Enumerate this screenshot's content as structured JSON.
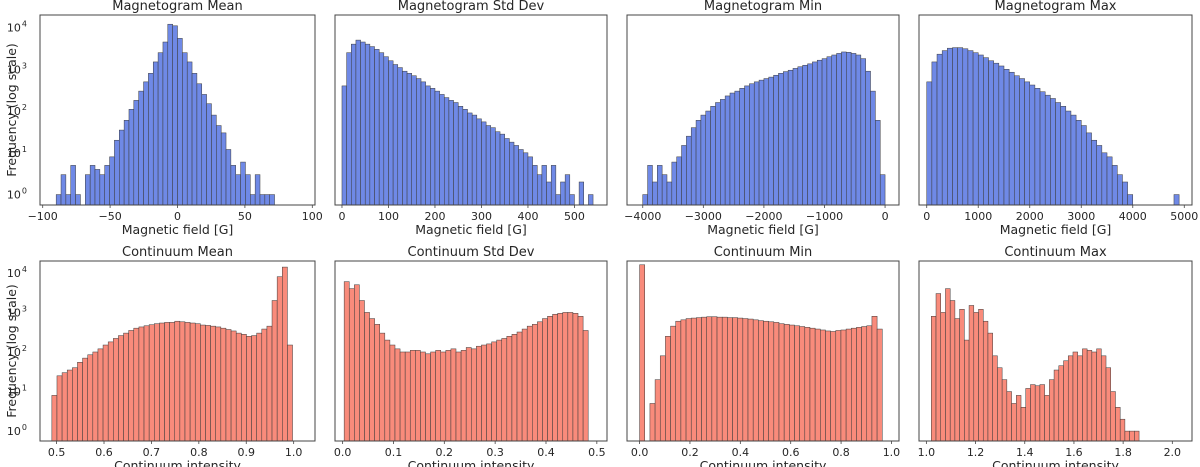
{
  "chart_data": [
    {
      "type": "bar",
      "title": "Magnetogram Mean",
      "xlabel": "Magnetic field [G]",
      "ylabel": "Frequency (log scale)",
      "color": "#6f89e6",
      "xlim": [
        -102,
        102
      ],
      "ylim_log10": [
        -0.25,
        4.3
      ],
      "bin_start": -90,
      "bin_width": 3.6,
      "counts": [
        1,
        3,
        1,
        5,
        1,
        0,
        3,
        5,
        4,
        3,
        5,
        8,
        20,
        35,
        60,
        110,
        180,
        300,
        500,
        800,
        1500,
        2500,
        4500,
        12000,
        11000,
        5500,
        2500,
        1500,
        800,
        450,
        250,
        150,
        80,
        45,
        30,
        12,
        5,
        3,
        6,
        3,
        1,
        3,
        1,
        1,
        1
      ],
      "xticks": [
        "−100",
        "−50",
        "0",
        "50",
        "100"
      ],
      "xtick_values": [
        -100,
        -50,
        0,
        50,
        100
      ],
      "yticks": [
        0,
        1,
        2,
        3,
        4
      ],
      "show_yticks": true
    },
    {
      "type": "bar",
      "title": "Magnetogram Std Dev",
      "xlabel": "Magnetic field [G]",
      "ylabel": "",
      "color": "#6f89e6",
      "xlim": [
        -15,
        570
      ],
      "ylim_log10": [
        -0.25,
        4.3
      ],
      "bin_start": 0,
      "bin_width": 10,
      "counts": [
        400,
        2500,
        4000,
        5000,
        4500,
        4000,
        3500,
        3000,
        2500,
        2000,
        1600,
        1300,
        1100,
        900,
        800,
        700,
        600,
        500,
        400,
        350,
        300,
        250,
        210,
        180,
        160,
        130,
        110,
        90,
        80,
        65,
        55,
        45,
        40,
        32,
        28,
        22,
        18,
        15,
        12,
        10,
        8,
        5,
        3,
        5,
        2,
        5,
        1,
        2,
        3,
        1,
        0,
        2,
        0,
        1,
        0
      ],
      "xticks": [
        "0",
        "100",
        "200",
        "300",
        "400",
        "500"
      ],
      "xtick_values": [
        0,
        100,
        200,
        300,
        400,
        500
      ],
      "yticks": [
        0,
        1,
        2,
        3,
        4
      ],
      "show_yticks": false
    },
    {
      "type": "bar",
      "title": "Magnetogram Min",
      "xlabel": "Magnetic field [G]",
      "ylabel": "",
      "color": "#6f89e6",
      "xlim": [
        -4260,
        230
      ],
      "ylim_log10": [
        -0.25,
        4.3
      ],
      "bin_start": -4000,
      "bin_width": 80,
      "counts": [
        1,
        5,
        2,
        5,
        3,
        2,
        6,
        8,
        15,
        25,
        40,
        60,
        80,
        100,
        130,
        160,
        190,
        230,
        270,
        300,
        350,
        400,
        450,
        500,
        550,
        600,
        650,
        720,
        800,
        880,
        950,
        1050,
        1150,
        1250,
        1350,
        1500,
        1650,
        1800,
        2000,
        2200,
        2400,
        2600,
        2550,
        2400,
        2200,
        1800,
        900,
        300,
        60,
        3
      ],
      "xticks": [
        "−4000",
        "−3000",
        "−2000",
        "−1000",
        "0"
      ],
      "xtick_values": [
        -4000,
        -3000,
        -2000,
        -1000,
        0
      ],
      "yticks": [
        0,
        1,
        2,
        3,
        4
      ],
      "show_yticks": false
    },
    {
      "type": "bar",
      "title": "Magnetogram Max",
      "xlabel": "Magnetic field [G]",
      "ylabel": "",
      "color": "#6f89e6",
      "xlim": [
        -150,
        5150
      ],
      "ylim_log10": [
        -0.25,
        4.3
      ],
      "bin_start": 0,
      "bin_width": 100,
      "counts": [
        500,
        1500,
        2300,
        2800,
        3200,
        3300,
        3300,
        3100,
        2800,
        2500,
        2200,
        1900,
        1600,
        1400,
        1200,
        1000,
        850,
        700,
        600,
        500,
        420,
        350,
        290,
        240,
        200,
        160,
        130,
        100,
        80,
        60,
        45,
        30,
        20,
        15,
        10,
        8,
        5,
        3,
        2,
        1,
        0,
        0,
        0,
        0,
        0,
        0,
        0,
        0,
        1
      ],
      "xticks": [
        "0",
        "1000",
        "2000",
        "3000",
        "4000",
        "5000"
      ],
      "xtick_values": [
        0,
        1000,
        2000,
        3000,
        4000,
        5000
      ],
      "yticks": [
        0,
        1,
        2,
        3,
        4
      ],
      "show_yticks": false
    },
    {
      "type": "bar",
      "title": "Continuum Mean",
      "xlabel": "Continuum intensity",
      "ylabel": "Frequency (log scale)",
      "color": "#f98b7b",
      "xlim": [
        0.465,
        1.045
      ],
      "ylim_log10": [
        -0.25,
        4.3
      ],
      "bin_start": 0.49,
      "bin_width": 0.0108,
      "counts": [
        8,
        25,
        30,
        35,
        40,
        55,
        70,
        85,
        100,
        120,
        150,
        180,
        220,
        260,
        300,
        350,
        400,
        430,
        460,
        490,
        520,
        540,
        560,
        560,
        600,
        580,
        560,
        540,
        520,
        480,
        470,
        450,
        430,
        400,
        370,
        340,
        300,
        280,
        250,
        260,
        300,
        380,
        450,
        2000,
        8000,
        14000,
        150
      ],
      "xticks": [
        "0.5",
        "0.6",
        "0.7",
        "0.8",
        "0.9",
        "1.0"
      ],
      "xtick_values": [
        0.5,
        0.6,
        0.7,
        0.8,
        0.9,
        1.0
      ],
      "yticks": [
        0,
        1,
        2,
        3,
        4
      ],
      "show_yticks": true
    },
    {
      "type": "bar",
      "title": "Continuum Std Dev",
      "xlabel": "Continuum intensity",
      "ylabel": "",
      "color": "#f98b7b",
      "xlim": [
        -0.015,
        0.52
      ],
      "ylim_log10": [
        -0.25,
        4.3
      ],
      "bin_start": 0.003,
      "bin_width": 0.01,
      "counts": [
        6000,
        4000,
        5000,
        2000,
        1000,
        700,
        500,
        300,
        200,
        150,
        120,
        100,
        100,
        110,
        110,
        100,
        90,
        100,
        110,
        100,
        110,
        120,
        100,
        110,
        130,
        120,
        140,
        150,
        160,
        180,
        200,
        220,
        250,
        280,
        320,
        380,
        450,
        500,
        580,
        700,
        800,
        900,
        950,
        1000,
        1000,
        950,
        800,
        350
      ],
      "xticks": [
        "0.0",
        "0.1",
        "0.2",
        "0.3",
        "0.4",
        "0.5"
      ],
      "xtick_values": [
        0.0,
        0.1,
        0.2,
        0.3,
        0.4,
        0.5
      ],
      "yticks": [
        0,
        1,
        2,
        3,
        4
      ],
      "show_yticks": false
    },
    {
      "type": "bar",
      "title": "Continuum Min",
      "xlabel": "Continuum intensity",
      "ylabel": "",
      "color": "#f98b7b",
      "xlim": [
        -0.05,
        1.03
      ],
      "ylim_log10": [
        -0.25,
        4.3
      ],
      "bin_start": 0.0,
      "bin_width": 0.0205,
      "counts": [
        16000,
        0,
        5,
        20,
        80,
        250,
        450,
        600,
        650,
        700,
        720,
        740,
        760,
        780,
        780,
        760,
        760,
        740,
        740,
        720,
        700,
        680,
        650,
        620,
        600,
        580,
        560,
        520,
        500,
        480,
        460,
        440,
        420,
        400,
        380,
        360,
        340,
        330,
        350,
        360,
        380,
        400,
        420,
        440,
        460,
        800,
        380
      ],
      "xticks": [
        "0.0",
        "0.2",
        "0.4",
        "0.6",
        "0.8",
        "1.0"
      ],
      "xtick_values": [
        0.0,
        0.2,
        0.4,
        0.6,
        0.8,
        1.0
      ],
      "yticks": [
        0,
        1,
        2,
        3,
        4
      ],
      "show_yticks": false
    },
    {
      "type": "bar",
      "title": "Continuum Max",
      "xlabel": "Continuum intensity",
      "ylabel": "",
      "color": "#f98b7b",
      "xlim": [
        0.97,
        2.08
      ],
      "ylim_log10": [
        -0.25,
        4.3
      ],
      "bin_start": 1.02,
      "bin_width": 0.0192,
      "counts": [
        800,
        3000,
        1000,
        4000,
        2000,
        700,
        1200,
        200,
        1500,
        1000,
        1200,
        600,
        300,
        80,
        40,
        20,
        10,
        5,
        8,
        4,
        12,
        15,
        14,
        15,
        8,
        20,
        35,
        45,
        60,
        80,
        100,
        80,
        120,
        110,
        100,
        120,
        80,
        40,
        10,
        4,
        2,
        1,
        1,
        1
      ],
      "xticks": [
        "1.0",
        "1.2",
        "1.4",
        "1.6",
        "1.8",
        "2.0"
      ],
      "xtick_values": [
        1.0,
        1.2,
        1.4,
        1.6,
        1.8,
        2.0
      ],
      "yticks": [
        0,
        1,
        2,
        3,
        4
      ],
      "show_yticks": false
    }
  ]
}
